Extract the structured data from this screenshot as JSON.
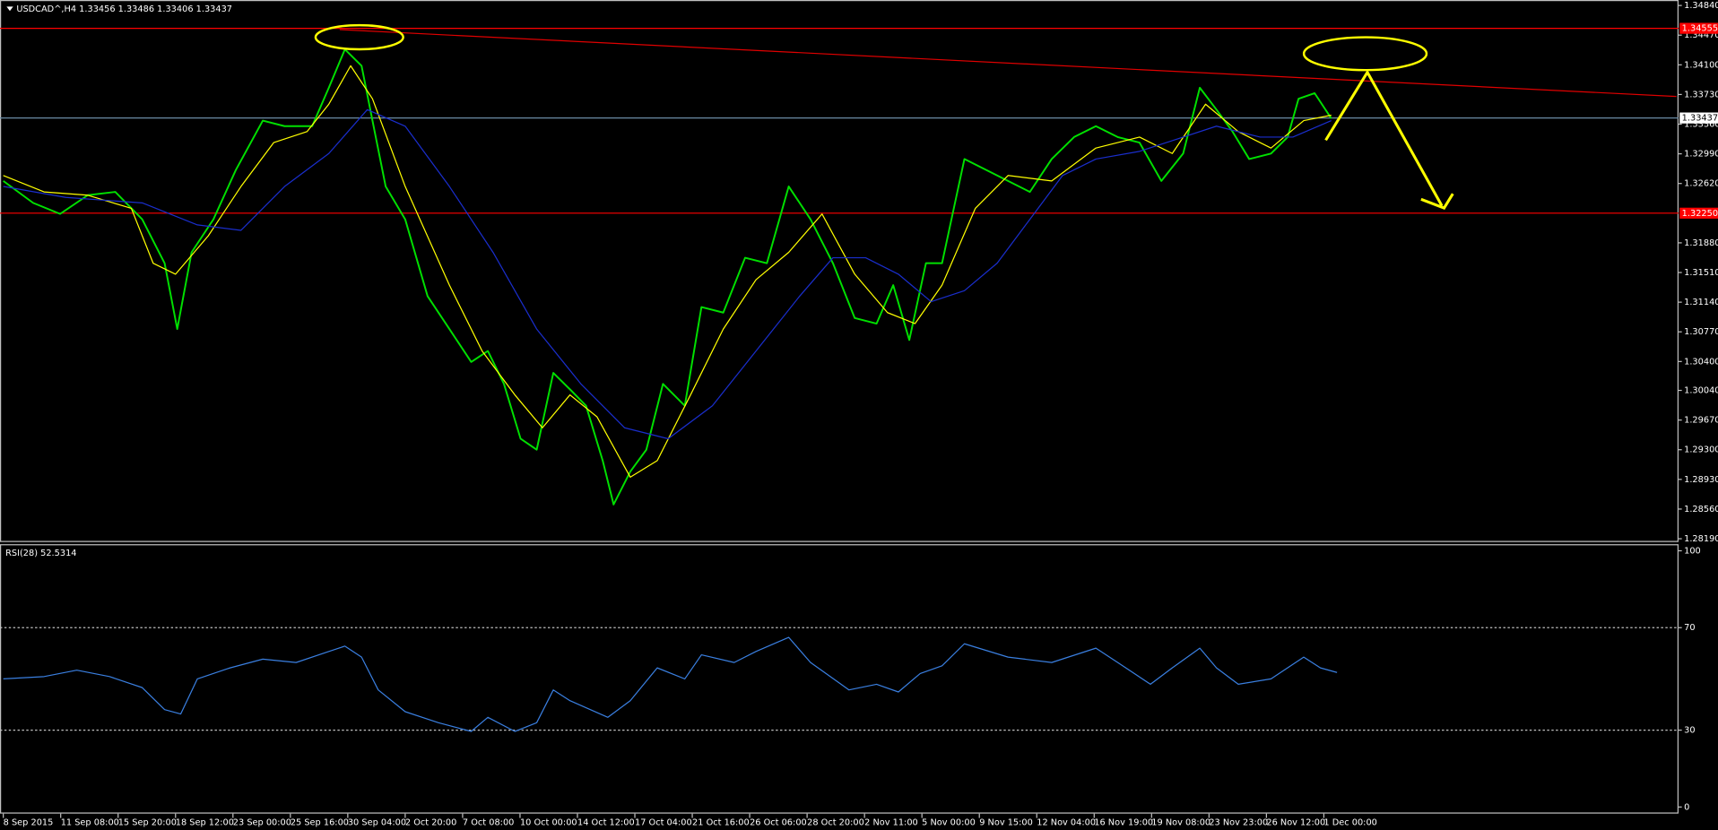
{
  "chart_data": [
    {
      "type": "line",
      "title": "USDCAD^,H4  1.33456 1.33486 1.33406 1.33437",
      "xlim": [
        0,
        29.14
      ],
      "ylim": [
        1.2819,
        1.3484
      ],
      "yticks": [
        {
          "value": 1.3484,
          "label": "1.34840"
        },
        {
          "value": 1.3447,
          "label": "1.34470"
        },
        {
          "value": 1.341,
          "label": "1.34100"
        },
        {
          "value": 1.3373,
          "label": "1.33730"
        },
        {
          "value": 1.3336,
          "label": "1.33360"
        },
        {
          "value": 1.3299,
          "label": "1.32990"
        },
        {
          "value": 1.3262,
          "label": "1.32620"
        },
        {
          "value": 1.3188,
          "label": "1.31880"
        },
        {
          "value": 1.3151,
          "label": "1.31510"
        },
        {
          "value": 1.3114,
          "label": "1.31140"
        },
        {
          "value": 1.3077,
          "label": "1.30770"
        },
        {
          "value": 1.304,
          "label": "1.30400"
        },
        {
          "value": 1.3004,
          "label": "1.30040"
        },
        {
          "value": 1.2967,
          "label": "1.29670"
        },
        {
          "value": 1.293,
          "label": "1.29300"
        },
        {
          "value": 1.2893,
          "label": "1.28930"
        },
        {
          "value": 1.2856,
          "label": "1.28560"
        },
        {
          "value": 1.2819,
          "label": "1.28190"
        }
      ],
      "levels": [
        {
          "value": 1.34555,
          "label": "1.34555",
          "color": "#ff0000",
          "label_fill": true
        },
        {
          "value": 1.3225,
          "label": "1.32250",
          "color": "#ff0000",
          "label_fill": true
        },
        {
          "value": 1.33437,
          "label": "1.33437",
          "color": "#6b8ba4",
          "label_fill": false
        }
      ],
      "trendline": {
        "color": "#e00000",
        "x": [
          5.86,
          29.14
        ],
        "y": [
          1.34539,
          1.33705
        ]
      },
      "series": [
        {
          "color": "#00e000",
          "width": 1.6,
          "x": [
            0,
            0.52,
            0.99,
            1.47,
            1.95,
            2.42,
            2.81,
            3.03,
            3.28,
            3.66,
            4.05,
            4.52,
            4.9,
            5.38,
            5.67,
            5.95,
            6.24,
            6.43,
            6.66,
            7.0,
            7.39,
            7.77,
            8.15,
            8.44,
            8.72,
            9.01,
            9.29,
            9.58,
            9.87,
            10.15,
            10.44,
            10.63,
            10.92,
            11.2,
            11.49,
            11.87,
            12.16,
            12.54,
            12.92,
            13.3,
            13.68,
            14.06,
            14.45,
            14.83,
            15.21,
            15.5,
            15.78,
            16.07,
            16.35,
            16.74,
            17.12,
            17.5,
            17.88,
            18.26,
            18.65,
            19.03,
            19.41,
            19.79,
            20.17,
            20.55,
            20.84,
            21.13,
            21.41,
            21.7,
            22.08,
            22.37,
            22.56,
            22.84,
            23.13
          ],
          "values": [
            1.32652,
            1.32378,
            1.32241,
            1.32474,
            1.32515,
            1.32173,
            1.31626,
            1.30805,
            1.31762,
            1.32173,
            1.32788,
            1.33404,
            1.33335,
            1.33335,
            1.33814,
            1.34293,
            1.34088,
            1.33404,
            1.32583,
            1.32173,
            1.31215,
            1.30805,
            1.30395,
            1.30531,
            1.30121,
            1.29437,
            1.293,
            1.30258,
            1.30053,
            1.29848,
            1.29164,
            1.28617,
            1.29027,
            1.293,
            1.30121,
            1.29848,
            1.31079,
            1.3101,
            1.31694,
            1.31626,
            1.32583,
            1.32173,
            1.31626,
            1.30942,
            1.30873,
            1.31352,
            1.30668,
            1.31626,
            1.31626,
            1.32925,
            1.32788,
            1.32652,
            1.32515,
            1.32925,
            1.33199,
            1.33335,
            1.33199,
            1.3313,
            1.32652,
            1.32994,
            1.33814,
            1.33541,
            1.33267,
            1.32925,
            1.32994,
            1.33199,
            1.33677,
            1.33746,
            1.33431
          ]
        },
        {
          "color": "#ffff00",
          "width": 1,
          "x": [
            0,
            0.71,
            1.47,
            2.23,
            2.61,
            3.0,
            3.57,
            4.14,
            4.71,
            5.29,
            5.67,
            6.05,
            6.43,
            7.0,
            7.77,
            8.34,
            8.91,
            9.39,
            9.87,
            10.34,
            10.92,
            11.39,
            11.97,
            12.54,
            13.11,
            13.68,
            14.26,
            14.83,
            15.4,
            15.88,
            16.35,
            16.93,
            17.5,
            18.26,
            19.03,
            19.79,
            20.36,
            20.94,
            21.51,
            22.08,
            22.65,
            23.13
          ],
          "values": [
            1.3272,
            1.32515,
            1.32474,
            1.3231,
            1.31626,
            1.31489,
            1.31967,
            1.32583,
            1.3313,
            1.33267,
            1.33609,
            1.34088,
            1.33677,
            1.32583,
            1.31352,
            1.30531,
            1.29984,
            1.29574,
            1.29984,
            1.29711,
            1.28958,
            1.29164,
            1.29984,
            1.30805,
            1.3142,
            1.31762,
            1.3224,
            1.31489,
            1.3101,
            1.30873,
            1.31352,
            1.3231,
            1.3272,
            1.32652,
            1.33062,
            1.33199,
            1.32994,
            1.33609,
            1.33267,
            1.33062,
            1.33404,
            1.33472
          ]
        },
        {
          "color": "#1a2ecc",
          "width": 1,
          "x": [
            0,
            1.09,
            2.42,
            3.38,
            4.14,
            4.9,
            5.67,
            6.34,
            7.0,
            7.77,
            8.53,
            9.29,
            10.06,
            10.82,
            11.58,
            12.35,
            13.11,
            13.87,
            14.45,
            15.02,
            15.59,
            16.16,
            16.74,
            17.31,
            17.88,
            18.45,
            19.03,
            19.79,
            20.55,
            21.13,
            21.89,
            22.46,
            23.13
          ],
          "values": [
            1.32583,
            1.32446,
            1.32378,
            1.32104,
            1.32036,
            1.32583,
            1.32994,
            1.33541,
            1.33335,
            1.32583,
            1.31762,
            1.30805,
            1.30121,
            1.29574,
            1.29437,
            1.29848,
            1.30531,
            1.31215,
            1.31694,
            1.31694,
            1.31489,
            1.31146,
            1.31283,
            1.31626,
            1.32173,
            1.3272,
            1.32925,
            1.33021,
            1.33199,
            1.33335,
            1.33199,
            1.33199,
            1.33404
          ]
        }
      ]
    },
    {
      "type": "line",
      "title": "RSI(28) 52.5314",
      "xlim": [
        0,
        29.14
      ],
      "ylim": [
        0,
        100
      ],
      "yticks": [
        0,
        30,
        70,
        100
      ],
      "grid": "dotted",
      "xticks": [
        {
          "value": 0,
          "label": "8 Sep 2015"
        },
        {
          "value": 1,
          "label": "11 Sep 08:00"
        },
        {
          "value": 2,
          "label": "15 Sep 20:00"
        },
        {
          "value": 3,
          "label": "18 Sep 12:00"
        },
        {
          "value": 4,
          "label": "23 Sep 00:00"
        },
        {
          "value": 5,
          "label": "25 Sep 16:00"
        },
        {
          "value": 6,
          "label": "30 Sep 04:00"
        },
        {
          "value": 7,
          "label": "2 Oct 20:00"
        },
        {
          "value": 8,
          "label": "7 Oct 08:00"
        },
        {
          "value": 9,
          "label": "10 Oct 00:00"
        },
        {
          "value": 10,
          "label": "14 Oct 12:00"
        },
        {
          "value": 11,
          "label": "17 Oct 04:00"
        },
        {
          "value": 12,
          "label": "21 Oct 16:00"
        },
        {
          "value": 13,
          "label": "26 Oct 06:00"
        },
        {
          "value": 14,
          "label": "28 Oct 20:00"
        },
        {
          "value": 15,
          "label": "2 Nov 11:00"
        },
        {
          "value": 16,
          "label": "5 Nov 00:00"
        },
        {
          "value": 17,
          "label": "9 Nov 15:00"
        },
        {
          "value": 18,
          "label": "12 Nov 04:00"
        },
        {
          "value": 19,
          "label": "16 Nov 19:00"
        },
        {
          "value": 20,
          "label": "19 Nov 08:00"
        },
        {
          "value": 21,
          "label": "23 Nov 23:00"
        },
        {
          "value": 22,
          "label": "26 Nov 12:00"
        },
        {
          "value": 23,
          "label": "1 Dec 00:00"
        }
      ],
      "series": [
        {
          "color": "#3a7fe0",
          "width": 1,
          "x": [
            0,
            0.71,
            1.28,
            1.85,
            2.42,
            2.81,
            3.09,
            3.38,
            3.95,
            4.52,
            5.1,
            5.67,
            5.95,
            6.24,
            6.53,
            7.0,
            7.58,
            8.15,
            8.44,
            8.91,
            9.29,
            9.58,
            9.87,
            10.53,
            10.92,
            11.39,
            11.87,
            12.16,
            12.73,
            13.11,
            13.68,
            14.06,
            14.73,
            15.21,
            15.59,
            15.97,
            16.35,
            16.74,
            17.5,
            18.26,
            19.03,
            19.41,
            19.98,
            20.36,
            20.84,
            21.13,
            21.51,
            22.08,
            22.65,
            22.94,
            23.23
          ],
          "values": [
            50.0,
            50.9,
            53.4,
            50.9,
            46.6,
            38.0,
            36.3,
            50.0,
            54.3,
            57.7,
            56.4,
            60.7,
            62.8,
            58.5,
            45.7,
            37.2,
            32.9,
            29.5,
            35.0,
            29.5,
            32.9,
            45.7,
            41.5,
            35.0,
            41.5,
            54.3,
            50.0,
            59.4,
            56.4,
            60.7,
            66.2,
            56.4,
            45.7,
            47.9,
            44.9,
            52.1,
            55.1,
            63.7,
            58.5,
            56.4,
            62.0,
            56.4,
            47.9,
            54.3,
            62.0,
            54.3,
            47.9,
            50.0,
            58.5,
            54.3,
            52.5
          ]
        }
      ]
    }
  ]
}
